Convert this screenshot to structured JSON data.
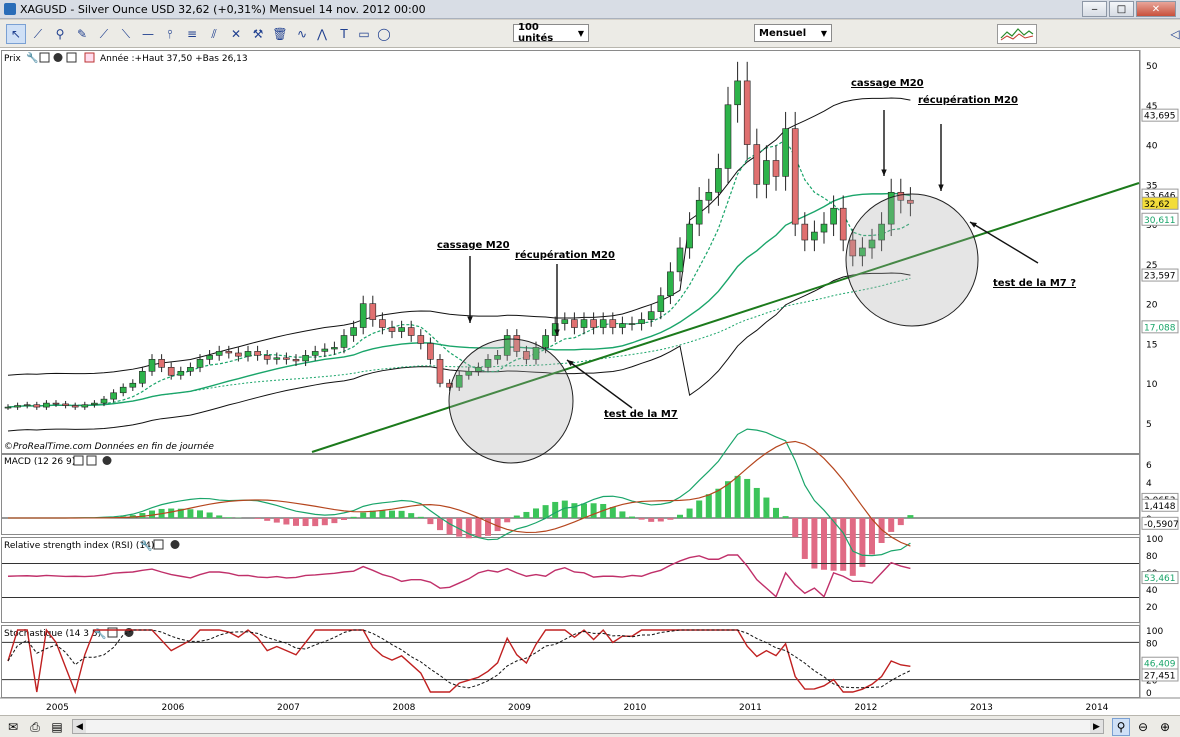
{
  "window": {
    "title": "XAGUSD - Silver Ounce USD     32,62 (+0,31%)     Mensuel   14 nov. 2012 00:00",
    "minimize_glyph": "‒",
    "maximize_glyph": "□",
    "close_glyph": "✕"
  },
  "toolbar": {
    "tool_icons": [
      "cursor-arrow-icon",
      "ruler-icon",
      "zoom-icon",
      "draw-pencil-icon",
      "trendline-icon",
      "line-segment-icon",
      "horizontal-line-icon",
      "vertical-line-icon",
      "fibonacci-icon",
      "channel-icon",
      "crossed-tools-icon",
      "hammer-icon",
      "trash-icon",
      "curve-fit-icon",
      "zigzag-icon",
      "text-icon",
      "rectangle-icon",
      "ellipse-icon"
    ],
    "units_select": "100 unités",
    "period_select": "Mensuel"
  },
  "price_panel": {
    "title": "Prix",
    "info": "Année :+Haut 37,50 +Bas 26,13",
    "watermark": "©ProRealTime.com  Données en fin de journée",
    "y_ticks": [
      "50",
      "45",
      "40",
      "35",
      "30",
      "25",
      "20",
      "15",
      "10",
      "5"
    ],
    "markers": [
      {
        "label": "43,695",
        "color": "#ffffff",
        "text_color": "#000000"
      },
      {
        "label": "33,646",
        "color": "#ffffff",
        "text_color": "#000000"
      },
      {
        "label": "32,62",
        "color": "#f3dd3a",
        "text_color": "#000000"
      },
      {
        "label": "30,611",
        "color": "#ffffff",
        "text_color": "#1aa56a"
      },
      {
        "label": "23,597",
        "color": "#ffffff",
        "text_color": "#000000"
      },
      {
        "label": "17,088",
        "color": "#ffffff",
        "text_color": "#1aa56a"
      }
    ],
    "annotations": [
      {
        "text": "cassage M20"
      },
      {
        "text": "récupération M20"
      },
      {
        "text": "test de la M7"
      },
      {
        "text": "cassage M20"
      },
      {
        "text": "récupération M20"
      },
      {
        "text": "test de la M7 ?"
      }
    ]
  },
  "macd_panel": {
    "title": "MACD (12 26 9)",
    "y_ticks": [
      "6",
      "4",
      "2",
      "0"
    ],
    "markers": [
      "2,0653",
      "1,4148",
      "-0,5907"
    ]
  },
  "rsi_panel": {
    "title": "Relative strength index (RSI) (14)",
    "y_ticks": [
      "100",
      "80",
      "60",
      "40",
      "20"
    ],
    "marker": "53,461"
  },
  "stoch_panel": {
    "title": "Stochastique (14 3 5)",
    "y_ticks": [
      "100",
      "80",
      "20",
      "0"
    ],
    "markers": [
      "46,409",
      "27,451"
    ]
  },
  "x_axis": {
    "years": [
      "2005",
      "2006",
      "2007",
      "2008",
      "2009",
      "2010",
      "2011",
      "2012",
      "2013",
      "2014"
    ]
  },
  "chart_data": {
    "type": "candlestick",
    "series_name": "XAGUSD",
    "x_unit": "monthly periods",
    "y_unit": "USD",
    "ylim": [
      4,
      52
    ],
    "annotations": [
      "cassage M20",
      "récupération M20",
      "test de la M7",
      "cassage M20",
      "récupération M20",
      "test de la M7 ?"
    ],
    "year_axis": [
      "2005",
      "2006",
      "2007",
      "2008",
      "2009",
      "2010",
      "2011",
      "2012",
      "2013",
      "2014"
    ]
  },
  "statusbar": {
    "icons": [
      "envelope-icon",
      "printer-icon",
      "scroll-left-icon",
      "scroll-right-icon",
      "zoom-fit-icon",
      "zoom-selection-icon",
      "zoom-out-icon",
      "zoom-in-icon"
    ]
  }
}
